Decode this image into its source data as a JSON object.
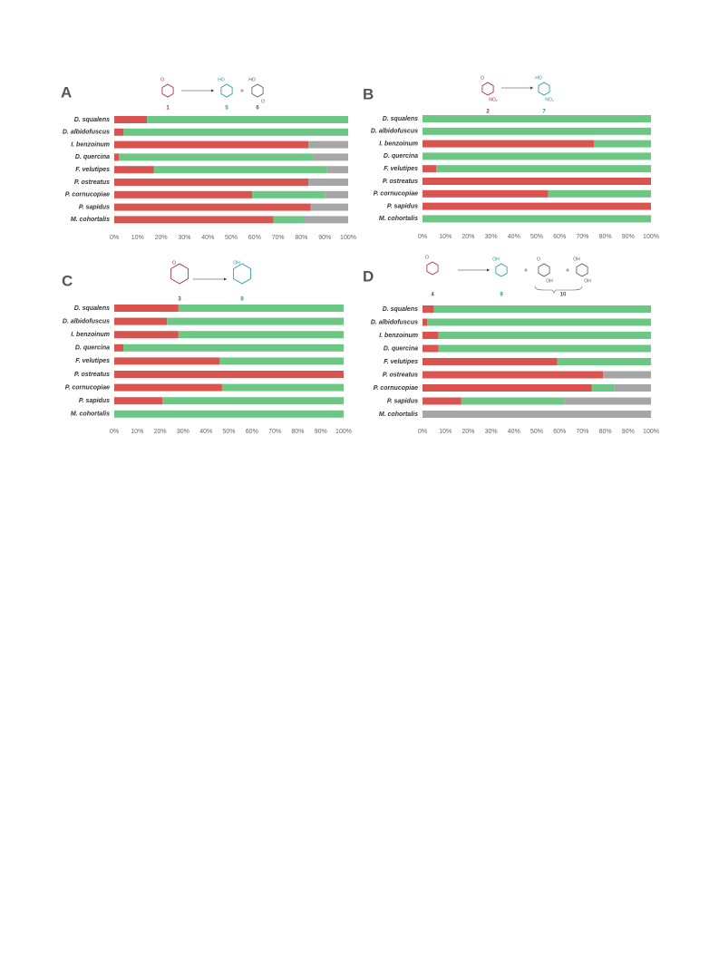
{
  "chart_data": [
    {
      "type": "bar",
      "orientation": "horizontal",
      "stacked": true,
      "panel": "A",
      "scheme": {
        "compounds": [
          {
            "label": "1",
            "atoms": [
              "O"
            ],
            "color": "#a8204f"
          },
          {
            "label": "5",
            "atoms": [
              "HO"
            ],
            "color": "#1a9aa0"
          },
          {
            "label": "6",
            "atoms": [
              "HO",
              "O"
            ],
            "color": "#555555"
          }
        ]
      },
      "categories": [
        "D. squalens",
        "D. albidofuscus",
        "I. benzoinum",
        "D. quercina",
        "F. velutipes",
        "P. ostreatus",
        "P. cornucopiae",
        "P. sapidus",
        "M. cohortalis"
      ],
      "series": [
        {
          "color": "#d9534f",
          "values": [
            14,
            4,
            83,
            2,
            17,
            83,
            59,
            84,
            68
          ]
        },
        {
          "color": "#6cc785",
          "values": [
            86,
            96,
            0,
            83,
            74,
            0,
            31,
            0,
            13
          ]
        },
        {
          "color": "#a6a6a6",
          "values": [
            0,
            0,
            17,
            15,
            9,
            17,
            10,
            16,
            19
          ]
        }
      ],
      "xlim": [
        0,
        100
      ],
      "xticks": [
        {
          "value": 0,
          "label": "0%"
        },
        {
          "value": 10,
          "label": "10%"
        },
        {
          "value": 20,
          "label": "20%"
        },
        {
          "value": 30,
          "label": "30%"
        },
        {
          "value": 40,
          "label": "40%"
        },
        {
          "value": 50,
          "label": "50%"
        },
        {
          "value": 60,
          "label": "60%"
        },
        {
          "value": 70,
          "label": "70%"
        },
        {
          "value": 80,
          "label": "80%"
        },
        {
          "value": 90,
          "label": "90%"
        },
        {
          "value": 100,
          "label": "100%"
        }
      ]
    },
    {
      "type": "bar",
      "orientation": "horizontal",
      "stacked": true,
      "panel": "B",
      "scheme": {
        "compounds": [
          {
            "label": "2",
            "atoms": [
              "O",
              "NO₂"
            ],
            "color": "#a8204f"
          },
          {
            "label": "7",
            "atoms": [
              "HO",
              "NO₂"
            ],
            "color": "#1a9aa0"
          }
        ]
      },
      "categories": [
        "D. squalens",
        "D. albidofuscus",
        "I. benzoinum",
        "D. quercina",
        "F. velutipes",
        "P. ostreatus",
        "P. cornucopiae",
        "P. sapidus",
        "M. cohortalis"
      ],
      "series": [
        {
          "color": "#d9534f",
          "values": [
            0,
            0,
            75,
            0,
            6,
            100,
            55,
            100,
            0
          ]
        },
        {
          "color": "#6cc785",
          "values": [
            100,
            100,
            25,
            100,
            94,
            0,
            45,
            0,
            100
          ]
        }
      ],
      "xlim": [
        0,
        100
      ],
      "xticks": [
        {
          "value": 0,
          "label": "0%"
        },
        {
          "value": 10,
          "label": "10%"
        },
        {
          "value": 20,
          "label": "20%"
        },
        {
          "value": 30,
          "label": "30%"
        },
        {
          "value": 40,
          "label": "40%"
        },
        {
          "value": 50,
          "label": "50%"
        },
        {
          "value": 60,
          "label": "60%"
        },
        {
          "value": 70,
          "label": "70%"
        },
        {
          "value": 80,
          "label": "80%"
        },
        {
          "value": 90,
          "label": "90%"
        },
        {
          "value": 100,
          "label": "100%"
        }
      ]
    },
    {
      "type": "bar",
      "orientation": "horizontal",
      "stacked": true,
      "panel": "C",
      "scheme": {
        "compounds": [
          {
            "label": "3",
            "atoms": [
              "O"
            ],
            "color": "#a8204f"
          },
          {
            "label": "8",
            "atoms": [
              "OH"
            ],
            "color": "#1a9aa0"
          }
        ]
      },
      "categories": [
        "D. squalens",
        "D. albidofuscus",
        "I. benzoinum",
        "D. quercina",
        "F. velutipes",
        "P. ostreatus",
        "P. cornucopiae",
        "P. sapidus",
        "M. cohortalis"
      ],
      "series": [
        {
          "color": "#d9534f",
          "values": [
            28,
            23,
            28,
            4,
            46,
            100,
            47,
            21,
            0
          ]
        },
        {
          "color": "#6cc785",
          "values": [
            72,
            77,
            72,
            96,
            54,
            0,
            53,
            79,
            100
          ]
        }
      ],
      "xlim": [
        0,
        100
      ],
      "xticks": [
        {
          "value": 0,
          "label": "0%"
        },
        {
          "value": 10,
          "label": "10%"
        },
        {
          "value": 20,
          "label": "20%"
        },
        {
          "value": 30,
          "label": "30%"
        },
        {
          "value": 40,
          "label": "40%"
        },
        {
          "value": 50,
          "label": "50%"
        },
        {
          "value": 60,
          "label": "60%"
        },
        {
          "value": 70,
          "label": "70%"
        },
        {
          "value": 80,
          "label": "80%"
        },
        {
          "value": 90,
          "label": "90%"
        },
        {
          "value": 100,
          "label": "100%"
        }
      ]
    },
    {
      "type": "bar",
      "orientation": "horizontal",
      "stacked": true,
      "panel": "D",
      "scheme": {
        "compounds": [
          {
            "label": "4",
            "atoms": [
              "O"
            ],
            "color": "#a8204f"
          },
          {
            "label": "9",
            "atoms": [
              "OH"
            ],
            "color": "#1a9aa0"
          },
          {
            "label": "10",
            "atoms": [
              "O",
              "OH",
              "OH",
              "OH"
            ],
            "color": "#555555"
          }
        ]
      },
      "categories": [
        "D. squalens",
        "D. albidofuscus",
        "I. benzoinum",
        "D. quercina",
        "F. velutipes",
        "P. ostreatus",
        "P. cornucopiae",
        "P. sapidus",
        "M. cohortalis"
      ],
      "series": [
        {
          "color": "#d9534f",
          "values": [
            5,
            2,
            7,
            7,
            59,
            79,
            74,
            17,
            0
          ]
        },
        {
          "color": "#6cc785",
          "values": [
            95,
            98,
            93,
            93,
            41,
            0,
            10,
            45,
            0
          ]
        },
        {
          "color": "#a6a6a6",
          "values": [
            0,
            0,
            0,
            0,
            0,
            21,
            16,
            38,
            100
          ]
        }
      ],
      "xlim": [
        0,
        100
      ],
      "xticks": [
        {
          "value": 0,
          "label": "0%"
        },
        {
          "value": 10,
          "label": "10%"
        },
        {
          "value": 20,
          "label": "20%"
        },
        {
          "value": 30,
          "label": "30%"
        },
        {
          "value": 40,
          "label": "40%"
        },
        {
          "value": 50,
          "label": "50%"
        },
        {
          "value": 60,
          "label": "60%"
        },
        {
          "value": 70,
          "label": "70%"
        },
        {
          "value": 80,
          "label": "80%"
        },
        {
          "value": 90,
          "label": "90%"
        },
        {
          "value": 100,
          "label": "100%"
        }
      ]
    }
  ]
}
